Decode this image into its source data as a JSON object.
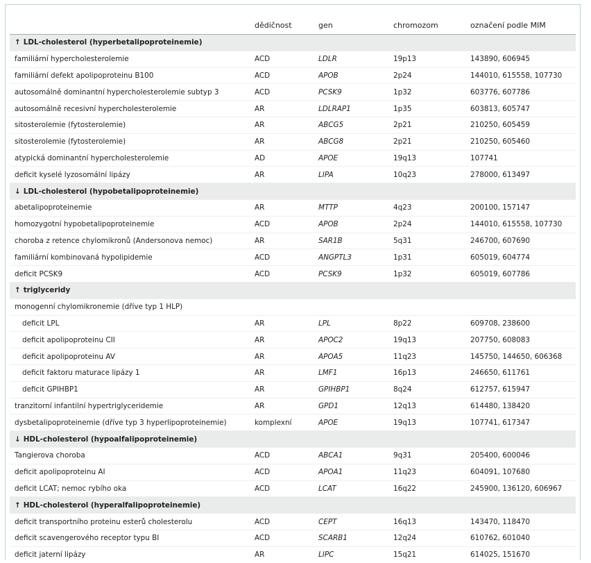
{
  "header": [
    "",
    "dědičnost",
    "gen",
    "chromozom",
    "označení podle MIM"
  ],
  "sections": [
    {
      "arrow": "↑",
      "title": "LDL-cholesterol (hyperbetalipoproteinemie)",
      "rows": [
        {
          "name": "familiární hypercholesterolemie",
          "inheritance": "ACD",
          "gene": "LDLR",
          "chromosome": "19p13",
          "mim": "143890, 606945"
        },
        {
          "name": "familiární defekt apolipoproteinu B100",
          "inheritance": "ACD",
          "gene": "APOB",
          "chromosome": "2p24",
          "mim": "144010, 615558, 107730"
        },
        {
          "name": "autosomálně dominantní hypercholesterolemie subtyp 3",
          "inheritance": "ACD",
          "gene": "PCSK9",
          "chromosome": "1p32",
          "mim": "603776, 607786"
        },
        {
          "name": "autosomálně recesivní hypercholesterolemie",
          "inheritance": "AR",
          "gene": "LDLRAP1",
          "chromosome": "1p35",
          "mim": "603813, 605747"
        },
        {
          "name": "sitosterolemie (fytosterolemie)",
          "inheritance": "AR",
          "gene": "ABCG5",
          "chromosome": "2p21",
          "mim": "210250, 605459"
        },
        {
          "name": "sitosterolemie (fytosterolemie)",
          "inheritance": "AR",
          "gene": "ABCG8",
          "chromosome": "2p21",
          "mim": "210250, 605460"
        },
        {
          "name": "atypická dominantní hypercholesterolemie",
          "inheritance": "AD",
          "gene": "APOE",
          "chromosome": "19q13",
          "mim": "107741"
        },
        {
          "name": "deficit kyselé lyzosomální lipázy",
          "inheritance": "AR",
          "gene": "LIPA",
          "chromosome": "10q23",
          "mim": "278000, 613497"
        }
      ]
    },
    {
      "arrow": "↓",
      "title": "LDL-cholesterol (hypobetalipoproteinemie)",
      "rows": [
        {
          "name": "abetalipoproteinemie",
          "inheritance": "AR",
          "gene": "MTTP",
          "chromosome": "4q23",
          "mim": "200100, 157147"
        },
        {
          "name": "homozygotní hypobetalipoproteinemie",
          "inheritance": "ACD",
          "gene": "APOB",
          "chromosome": "2p24",
          "mim": "144010, 615558, 107730"
        },
        {
          "name": "choroba z retence chylomikronů (Andersonova nemoc)",
          "inheritance": "AR",
          "gene": "SAR1B",
          "chromosome": "5q31",
          "mim": "246700, 607690"
        },
        {
          "name": "familiární kombinovaná hypolipidemie",
          "inheritance": "ACD",
          "gene": "ANGPTL3",
          "chromosome": "1p31",
          "mim": "605019, 604774"
        },
        {
          "name": "deficit PCSK9",
          "inheritance": "ACD",
          "gene": "PCSK9",
          "chromosome": "1p32",
          "mim": "605019, 607786"
        }
      ]
    },
    {
      "arrow": "↑",
      "title": "triglyceridy",
      "rows": [
        {
          "name": "monogenní chylomikronemie (dříve typ 1 HLP)",
          "inheritance": "",
          "gene": "",
          "chromosome": "",
          "mim": ""
        },
        {
          "name": "deficit LPL",
          "inheritance": "AR",
          "gene": "LPL",
          "chromosome": "8p22",
          "mim": "609708, 238600",
          "sub": true
        },
        {
          "name": "deficit apolipoproteinu CII",
          "inheritance": "AR",
          "gene": "APOC2",
          "chromosome": "19q13",
          "mim": "207750, 608083",
          "sub": true
        },
        {
          "name": "deficit apolipoproteinu AV",
          "inheritance": "AR",
          "gene": "APOA5",
          "chromosome": "11q23",
          "mim": "145750, 144650, 606368",
          "sub": true
        },
        {
          "name": "deficit faktoru maturace lipázy 1",
          "inheritance": "AR",
          "gene": "LMF1",
          "chromosome": "16p13",
          "mim": "246650, 611761",
          "sub": true
        },
        {
          "name": "deficit GPIHBP1",
          "inheritance": "AR",
          "gene": "GPIHBP1",
          "chromosome": "8q24",
          "mim": "612757, 615947",
          "sub": true
        },
        {
          "name": "tranzitorní infantilní hypertriglyceridemie",
          "inheritance": "AR",
          "gene": "GPD1",
          "chromosome": "12q13",
          "mim": "614480, 138420"
        },
        {
          "name": "dysbetalipoproteinemie (dříve typ 3 hyperlipoproteinemie)",
          "inheritance": "komplexní",
          "gene": "APOE",
          "chromosome": "19q13",
          "mim": "107741, 617347"
        }
      ]
    },
    {
      "arrow": "↓",
      "title": "HDL-cholesterol (hypoalfalipoproteinemie)",
      "rows": [
        {
          "name": "Tangierova choroba",
          "inheritance": "ACD",
          "gene": "ABCA1",
          "chromosome": "9q31",
          "mim": "205400, 600046"
        },
        {
          "name": "deficit apolipoproteinu AI",
          "inheritance": "ACD",
          "gene": "APOA1",
          "chromosome": "11q23",
          "mim": "604091, 107680"
        },
        {
          "name": "deficit LCAT; nemoc rybího oka",
          "inheritance": "ACD",
          "gene": "LCAT",
          "chromosome": "16q22",
          "mim": "245900, 136120, 606967"
        }
      ]
    },
    {
      "arrow": "↑",
      "title": "HDL-cholesterol (hyperalfalipoproteinemie)",
      "rows": [
        {
          "name": "deficit transportního proteinu esterů cholesterolu",
          "inheritance": "ACD",
          "gene": "CEPT",
          "chromosome": "16q13",
          "mim": "143470, 118470"
        },
        {
          "name": "deficit scavengerového receptor typu BI",
          "inheritance": "ACD",
          "gene": "SCARB1",
          "chromosome": "12q24",
          "mim": "610762, 601040"
        },
        {
          "name": "deficit jaterní lipázy",
          "inheritance": "AR",
          "gene": "LIPC",
          "chromosome": "15q21",
          "mim": "614025, 151670"
        }
      ]
    }
  ]
}
